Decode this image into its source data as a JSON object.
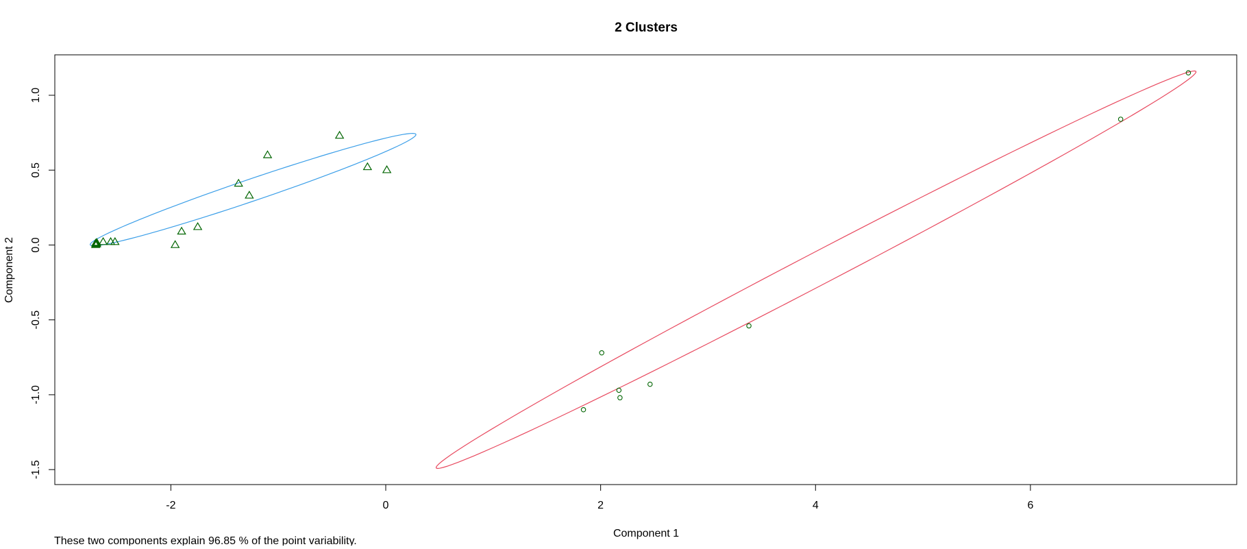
{
  "chart_data": {
    "type": "scatter",
    "title": "2 Clusters",
    "xlabel": "Component 1",
    "ylabel": "Component 2",
    "subtitle": "These two components explain 96.85 % of the point variability.",
    "xlim": [
      -3.08,
      7.92
    ],
    "ylim": [
      -1.6,
      1.27
    ],
    "xticks": [
      -2,
      0,
      2,
      4,
      6
    ],
    "xtick_labels": [
      "-2",
      "0",
      "2",
      "4",
      "6"
    ],
    "yticks": [
      -1.5,
      -1.0,
      -0.5,
      0.0,
      0.5,
      1.0
    ],
    "ytick_labels": [
      "-1.5",
      "-1.0",
      "-0.5",
      "0.0",
      "0.5",
      "1.0"
    ],
    "grid": false,
    "legend": "none",
    "point_color": "#006400",
    "series": [
      {
        "cluster": 1,
        "marker": "triangle",
        "ellipse_color": "#3a9ee8",
        "x": [
          -2.7,
          -2.69,
          -2.7,
          -2.69,
          -2.63,
          -2.56,
          -2.52,
          -1.96,
          -1.9,
          -1.75,
          -1.37,
          -1.27,
          -1.1,
          -0.43,
          -0.17,
          0.01
        ],
        "y": [
          0.0,
          0.005,
          0.01,
          0.015,
          0.02,
          0.02,
          0.02,
          0.0,
          0.09,
          0.12,
          0.41,
          0.33,
          0.6,
          0.73,
          0.52,
          0.5
        ]
      },
      {
        "cluster": 2,
        "marker": "circle",
        "ellipse_color": "#e8495f",
        "x": [
          1.84,
          2.01,
          2.17,
          2.18,
          2.46,
          3.38,
          6.84,
          7.47
        ],
        "y": [
          -1.1,
          -0.72,
          -0.97,
          -1.02,
          -0.93,
          -0.54,
          0.84,
          1.15
        ]
      }
    ],
    "ellipses": [
      {
        "cluster": 1,
        "color": "#3a9ee8",
        "endpoints_major": [
          [
            -2.75,
            0.0
          ],
          [
            0.28,
            0.74
          ]
        ],
        "semi_minor": 0.065
      },
      {
        "cluster": 2,
        "color": "#e8495f",
        "endpoints_major": [
          [
            0.47,
            -1.49
          ],
          [
            7.54,
            1.16
          ]
        ],
        "semi_minor": 0.085
      }
    ]
  }
}
